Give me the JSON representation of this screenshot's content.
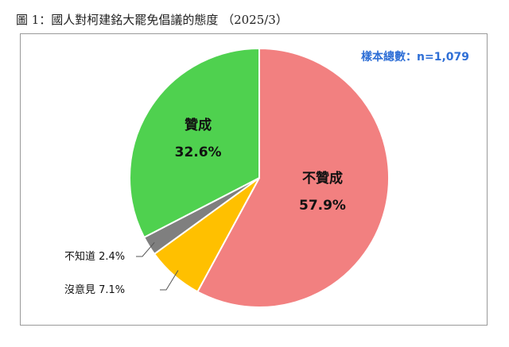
{
  "title": "圖 1：國人對柯建銘大罷免倡議的態度 （2025/3）",
  "sample_text": "樣本總數：n=1,079",
  "chart_data": {
    "type": "pie",
    "title": "國人對柯建銘大罷免倡議的態度",
    "slices": [
      {
        "label": "不贊成",
        "value": 57.9,
        "value_text": "57.9%",
        "color": "#f28080"
      },
      {
        "label": "沒意見",
        "value": 7.1,
        "value_text": "7.1%",
        "color": "#ffc000"
      },
      {
        "label": "不知道",
        "value": 2.4,
        "value_text": "2.4%",
        "color": "#7f7f7f"
      },
      {
        "label": "贊成",
        "value": 32.6,
        "value_text": "32.6%",
        "color": "#4fd14f"
      }
    ],
    "external_labels": [
      {
        "text": "不知道 2.4%",
        "slice": 2
      },
      {
        "text": "沒意見 7.1%",
        "slice": 1
      }
    ]
  }
}
